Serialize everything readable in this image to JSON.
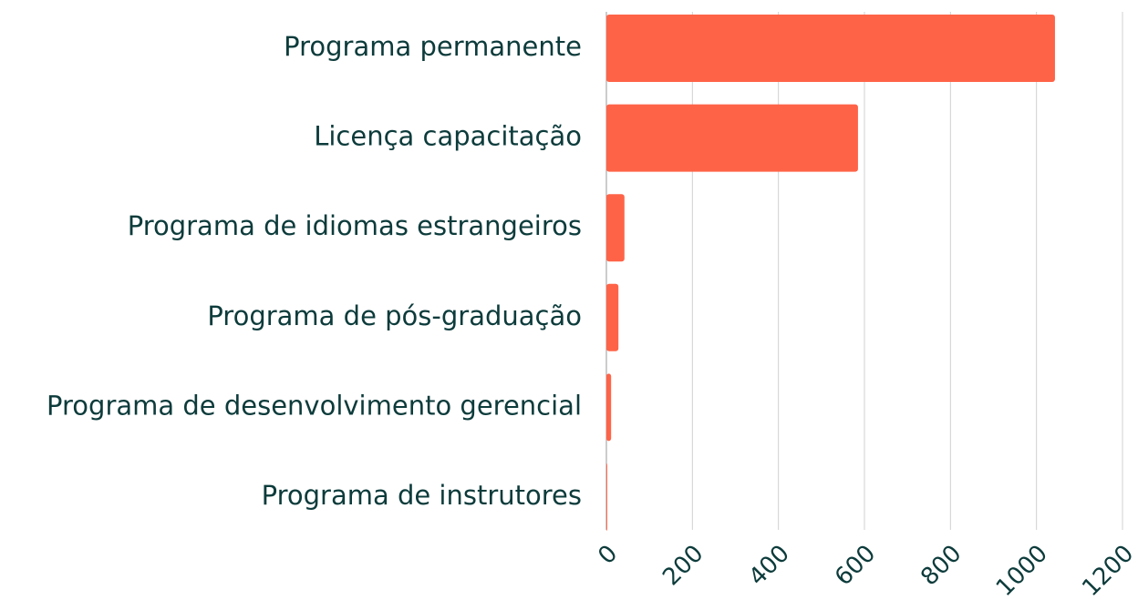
{
  "chart_data": {
    "type": "barh",
    "categories": [
      "Programa permanente",
      "Licença capacitação",
      "Programa de idiomas estrangeiros",
      "Programa de pós-graduação",
      "Programa de desenvolvimento gerencial",
      "Programa de instrutores"
    ],
    "values": [
      1043,
      585,
      42,
      28,
      11,
      2
    ],
    "color": "#ff6347",
    "xlim": [
      0,
      1200
    ],
    "xticks": [
      0,
      200,
      400,
      600,
      800,
      1000,
      1200
    ],
    "grid": true
  }
}
